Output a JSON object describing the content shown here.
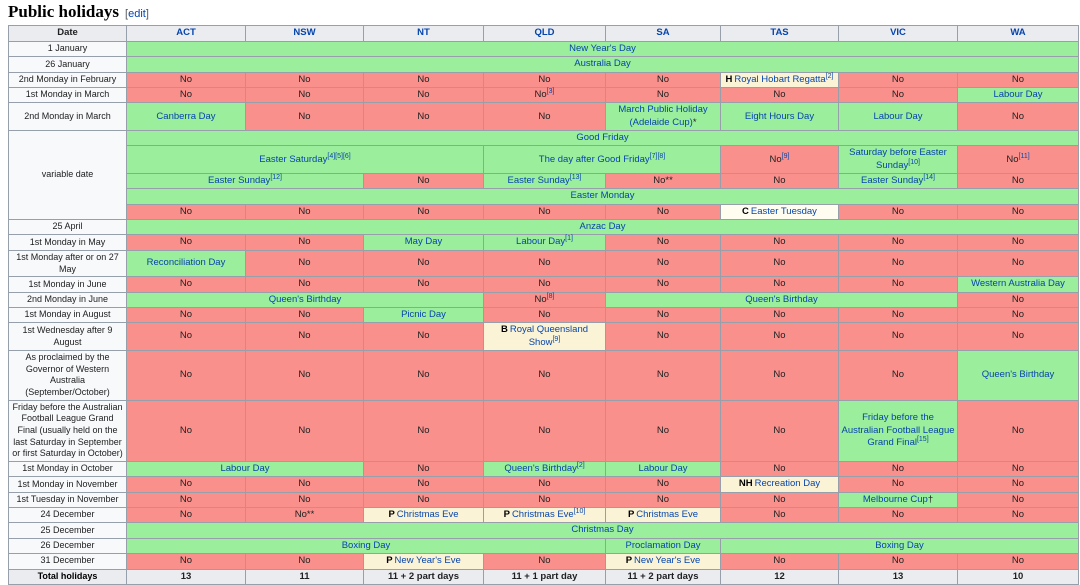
{
  "page": {
    "title": "Public holidays",
    "edit_open": "[",
    "edit_label": "edit",
    "edit_close": "]"
  },
  "colors": {
    "holiday_green": "#9BEE9B",
    "no_red": "#F9908C",
    "part_day_cream": "#FBF3D5",
    "easter_tuesday_pale": "#FFFDF0",
    "header_gray": "#EAECF0",
    "link_blue": "#0645AD"
  },
  "table": {
    "columns": [
      "Date",
      "ACT",
      "NSW",
      "NT",
      "QLD",
      "SA",
      "TAS",
      "VIC",
      "WA"
    ],
    "rows": [
      {
        "label": "1 January",
        "cells": [
          {
            "t": "New Year's Day",
            "bg": "g",
            "span": 8,
            "link": true
          }
        ]
      },
      {
        "label": "26 January",
        "cells": [
          {
            "t": "Australia Day",
            "bg": "g",
            "span": 8,
            "link": true
          }
        ]
      },
      {
        "label": "2nd Monday in February",
        "cells": [
          {
            "t": "No",
            "bg": "r"
          },
          {
            "t": "No",
            "bg": "r"
          },
          {
            "t": "No",
            "bg": "r"
          },
          {
            "t": "No",
            "bg": "r"
          },
          {
            "t": "No",
            "bg": "r"
          },
          {
            "pre": "H",
            "t": "Royal Hobart Regatta",
            "sup": "[2]",
            "bg": "c",
            "link": true
          },
          {
            "t": "No",
            "bg": "r"
          },
          {
            "t": "No",
            "bg": "r"
          }
        ]
      },
      {
        "label": "1st Monday in March",
        "cells": [
          {
            "t": "No",
            "bg": "r"
          },
          {
            "t": "No",
            "bg": "r"
          },
          {
            "t": "No",
            "bg": "r"
          },
          {
            "t": "No",
            "sup": "[3]",
            "bg": "r"
          },
          {
            "t": "No",
            "bg": "r"
          },
          {
            "t": "No",
            "bg": "r"
          },
          {
            "t": "No",
            "bg": "r"
          },
          {
            "t": "Labour Day",
            "bg": "g",
            "link": true
          }
        ]
      },
      {
        "label": "2nd Monday in March",
        "cells": [
          {
            "t": "Canberra Day",
            "bg": "g",
            "link": true
          },
          {
            "t": "No",
            "bg": "r"
          },
          {
            "t": "No",
            "bg": "r"
          },
          {
            "t": "No",
            "bg": "r"
          },
          {
            "t": "March Public Holiday (Adelaide Cup)",
            "mark": "*",
            "bg": "g",
            "link": true
          },
          {
            "t": "Eight Hours Day",
            "bg": "g",
            "link": true
          },
          {
            "t": "Labour Day",
            "bg": "g",
            "link": true
          },
          {
            "t": "No",
            "bg": "r"
          }
        ]
      },
      {
        "label": "variable date",
        "label_rowspan": 5,
        "cells": [
          {
            "t": "Good Friday",
            "bg": "g",
            "span": 8,
            "link": true
          }
        ]
      },
      {
        "label": null,
        "cells": [
          {
            "t": "Easter Saturday",
            "sup": "[4][5][6]",
            "bg": "g",
            "span": 3,
            "link": true
          },
          {
            "t": "The day after Good Friday",
            "sup": "[7][8]",
            "bg": "g",
            "span": 2,
            "link": true
          },
          {
            "t": "No",
            "sup": "[9]",
            "bg": "r"
          },
          {
            "t": "Saturday before Easter Sunday",
            "sup": "[10]",
            "bg": "g",
            "link": true
          },
          {
            "t": "No",
            "sup": "[11]",
            "bg": "r"
          }
        ]
      },
      {
        "label": null,
        "cells": [
          {
            "t": "Easter Sunday",
            "sup": "[12]",
            "bg": "g",
            "span": 2,
            "link": true
          },
          {
            "t": "No",
            "bg": "r"
          },
          {
            "t": "Easter Sunday",
            "sup": "[13]",
            "bg": "g",
            "link": true
          },
          {
            "t": "No",
            "mark": "**",
            "bg": "r"
          },
          {
            "t": "No",
            "bg": "r"
          },
          {
            "t": "Easter Sunday",
            "sup": "[14]",
            "bg": "g",
            "link": true
          },
          {
            "t": "No",
            "bg": "r"
          }
        ]
      },
      {
        "label": null,
        "cells": [
          {
            "t": "Easter Monday",
            "bg": "g",
            "span": 8,
            "link": true
          }
        ]
      },
      {
        "label": null,
        "cells": [
          {
            "t": "No",
            "bg": "r"
          },
          {
            "t": "No",
            "bg": "r"
          },
          {
            "t": "No",
            "bg": "r"
          },
          {
            "t": "No",
            "bg": "r"
          },
          {
            "t": "No",
            "bg": "r"
          },
          {
            "pre": "C",
            "t": "Easter Tuesday",
            "bg": "p",
            "link": true
          },
          {
            "t": "No",
            "bg": "r"
          },
          {
            "t": "No",
            "bg": "r"
          }
        ]
      },
      {
        "label": "25 April",
        "cells": [
          {
            "t": "Anzac Day",
            "bg": "g",
            "span": 8,
            "link": true
          }
        ]
      },
      {
        "label": "1st Monday in May",
        "cells": [
          {
            "t": "No",
            "bg": "r"
          },
          {
            "t": "No",
            "bg": "r"
          },
          {
            "t": "May Day",
            "bg": "g",
            "link": true
          },
          {
            "t": "Labour Day",
            "sup": "[1]",
            "bg": "g",
            "link": true
          },
          {
            "t": "No",
            "bg": "r"
          },
          {
            "t": "No",
            "bg": "r"
          },
          {
            "t": "No",
            "bg": "r"
          },
          {
            "t": "No",
            "bg": "r"
          }
        ]
      },
      {
        "label": "1st Monday after or on 27 May",
        "cells": [
          {
            "t": "Reconciliation Day",
            "bg": "g",
            "link": true
          },
          {
            "t": "No",
            "bg": "r"
          },
          {
            "t": "No",
            "bg": "r"
          },
          {
            "t": "No",
            "bg": "r"
          },
          {
            "t": "No",
            "bg": "r"
          },
          {
            "t": "No",
            "bg": "r"
          },
          {
            "t": "No",
            "bg": "r"
          },
          {
            "t": "No",
            "bg": "r"
          }
        ]
      },
      {
        "label": "1st Monday in June",
        "cells": [
          {
            "t": "No",
            "bg": "r"
          },
          {
            "t": "No",
            "bg": "r"
          },
          {
            "t": "No",
            "bg": "r"
          },
          {
            "t": "No",
            "bg": "r"
          },
          {
            "t": "No",
            "bg": "r"
          },
          {
            "t": "No",
            "bg": "r"
          },
          {
            "t": "No",
            "bg": "r"
          },
          {
            "t": "Western Australia Day",
            "bg": "g",
            "link": true
          }
        ]
      },
      {
        "label": "2nd Monday in June",
        "cells": [
          {
            "t": "Queen's Birthday",
            "bg": "g",
            "span": 3,
            "link": true
          },
          {
            "t": "No",
            "sup": "[8]",
            "bg": "r"
          },
          {
            "t": "Queen's Birthday",
            "bg": "g",
            "span": 3,
            "link": true
          },
          {
            "t": "No",
            "bg": "r"
          }
        ]
      },
      {
        "label": "1st Monday in August",
        "cells": [
          {
            "t": "No",
            "bg": "r"
          },
          {
            "t": "No",
            "bg": "r"
          },
          {
            "t": "Picnic Day",
            "bg": "g",
            "link": true
          },
          {
            "t": "No",
            "bg": "r"
          },
          {
            "t": "No",
            "bg": "r"
          },
          {
            "t": "No",
            "bg": "r"
          },
          {
            "t": "No",
            "bg": "r"
          },
          {
            "t": "No",
            "bg": "r"
          }
        ]
      },
      {
        "label": "1st Wednesday after 9 August",
        "cells": [
          {
            "t": "No",
            "bg": "r"
          },
          {
            "t": "No",
            "bg": "r"
          },
          {
            "t": "No",
            "bg": "r"
          },
          {
            "pre": "B",
            "t": "Royal Queensland Show",
            "sup": "[9]",
            "bg": "c",
            "link": true
          },
          {
            "t": "No",
            "bg": "r"
          },
          {
            "t": "No",
            "bg": "r"
          },
          {
            "t": "No",
            "bg": "r"
          },
          {
            "t": "No",
            "bg": "r"
          }
        ]
      },
      {
        "label": "As proclaimed by the Governor of Western Australia (September/October)",
        "cells": [
          {
            "t": "No",
            "bg": "r"
          },
          {
            "t": "No",
            "bg": "r"
          },
          {
            "t": "No",
            "bg": "r"
          },
          {
            "t": "No",
            "bg": "r"
          },
          {
            "t": "No",
            "bg": "r"
          },
          {
            "t": "No",
            "bg": "r"
          },
          {
            "t": "No",
            "bg": "r"
          },
          {
            "t": "Queen's Birthday",
            "bg": "g",
            "link": true
          }
        ]
      },
      {
        "label": "Friday before the Australian Football League Grand Final (usually held on the last Saturday in September or first Saturday in October)",
        "cells": [
          {
            "t": "No",
            "bg": "r"
          },
          {
            "t": "No",
            "bg": "r"
          },
          {
            "t": "No",
            "bg": "r"
          },
          {
            "t": "No",
            "bg": "r"
          },
          {
            "t": "No",
            "bg": "r"
          },
          {
            "t": "No",
            "bg": "r"
          },
          {
            "t": "Friday before the Australian Football League Grand Final",
            "sup": "[15]",
            "bg": "g",
            "link": true
          },
          {
            "t": "No",
            "bg": "r"
          }
        ]
      },
      {
        "label": "1st Monday in October",
        "cells": [
          {
            "t": "Labour Day",
            "bg": "g",
            "span": 2,
            "link": true
          },
          {
            "t": "No",
            "bg": "r"
          },
          {
            "t": "Queen's Birthday",
            "sup": "[2]",
            "bg": "g",
            "link": true
          },
          {
            "t": "Labour Day",
            "bg": "g",
            "link": true
          },
          {
            "t": "No",
            "bg": "r"
          },
          {
            "t": "No",
            "bg": "r"
          },
          {
            "t": "No",
            "bg": "r"
          }
        ]
      },
      {
        "label": "1st Monday in November",
        "cells": [
          {
            "t": "No",
            "bg": "r"
          },
          {
            "t": "No",
            "bg": "r"
          },
          {
            "t": "No",
            "bg": "r"
          },
          {
            "t": "No",
            "bg": "r"
          },
          {
            "t": "No",
            "bg": "r"
          },
          {
            "pre": "NH",
            "t": "Recreation Day",
            "bg": "c",
            "link": true
          },
          {
            "t": "No",
            "bg": "r"
          },
          {
            "t": "No",
            "bg": "r"
          }
        ]
      },
      {
        "label": "1st Tuesday in November",
        "cells": [
          {
            "t": "No",
            "bg": "r"
          },
          {
            "t": "No",
            "bg": "r"
          },
          {
            "t": "No",
            "bg": "r"
          },
          {
            "t": "No",
            "bg": "r"
          },
          {
            "t": "No",
            "bg": "r"
          },
          {
            "t": "No",
            "bg": "r"
          },
          {
            "t": "Melbourne Cup",
            "mark": "†",
            "bg": "g",
            "link": true
          },
          {
            "t": "No",
            "bg": "r"
          }
        ]
      },
      {
        "label": "24 December",
        "cells": [
          {
            "t": "No",
            "bg": "r"
          },
          {
            "t": "No",
            "mark": "**",
            "bg": "r"
          },
          {
            "pre": "P",
            "t": "Christmas Eve",
            "bg": "c",
            "link": true
          },
          {
            "pre": "P",
            "t": "Christmas Eve",
            "sup": "[10]",
            "bg": "c",
            "link": true
          },
          {
            "pre": "P",
            "t": "Christmas Eve",
            "bg": "c",
            "link": true
          },
          {
            "t": "No",
            "bg": "r"
          },
          {
            "t": "No",
            "bg": "r"
          },
          {
            "t": "No",
            "bg": "r"
          }
        ]
      },
      {
        "label": "25 December",
        "cells": [
          {
            "t": "Christmas Day",
            "bg": "g",
            "span": 8,
            "link": true
          }
        ]
      },
      {
        "label": "26 December",
        "cells": [
          {
            "t": "Boxing Day",
            "bg": "g",
            "span": 4,
            "link": true
          },
          {
            "t": "Proclamation Day",
            "bg": "g",
            "link": true
          },
          {
            "t": "Boxing Day",
            "bg": "g",
            "span": 3,
            "link": true
          }
        ]
      },
      {
        "label": "31 December",
        "cells": [
          {
            "t": "No",
            "bg": "r"
          },
          {
            "t": "No",
            "bg": "r"
          },
          {
            "pre": "P",
            "t": "New Year's Eve",
            "bg": "c",
            "link": true
          },
          {
            "t": "No",
            "bg": "r"
          },
          {
            "pre": "P",
            "t": "New Year's Eve",
            "bg": "c",
            "link": true
          },
          {
            "t": "No",
            "bg": "r"
          },
          {
            "t": "No",
            "bg": "r"
          },
          {
            "t": "No",
            "bg": "r"
          }
        ]
      },
      {
        "label": "Total holidays",
        "total": true,
        "cells": [
          {
            "t": "13"
          },
          {
            "t": "11"
          },
          {
            "t": "11 + 2 part days"
          },
          {
            "t": "11 + 1 part day"
          },
          {
            "t": "11 + 2 part days"
          },
          {
            "t": "12"
          },
          {
            "t": "13"
          },
          {
            "t": "10"
          }
        ]
      }
    ]
  }
}
